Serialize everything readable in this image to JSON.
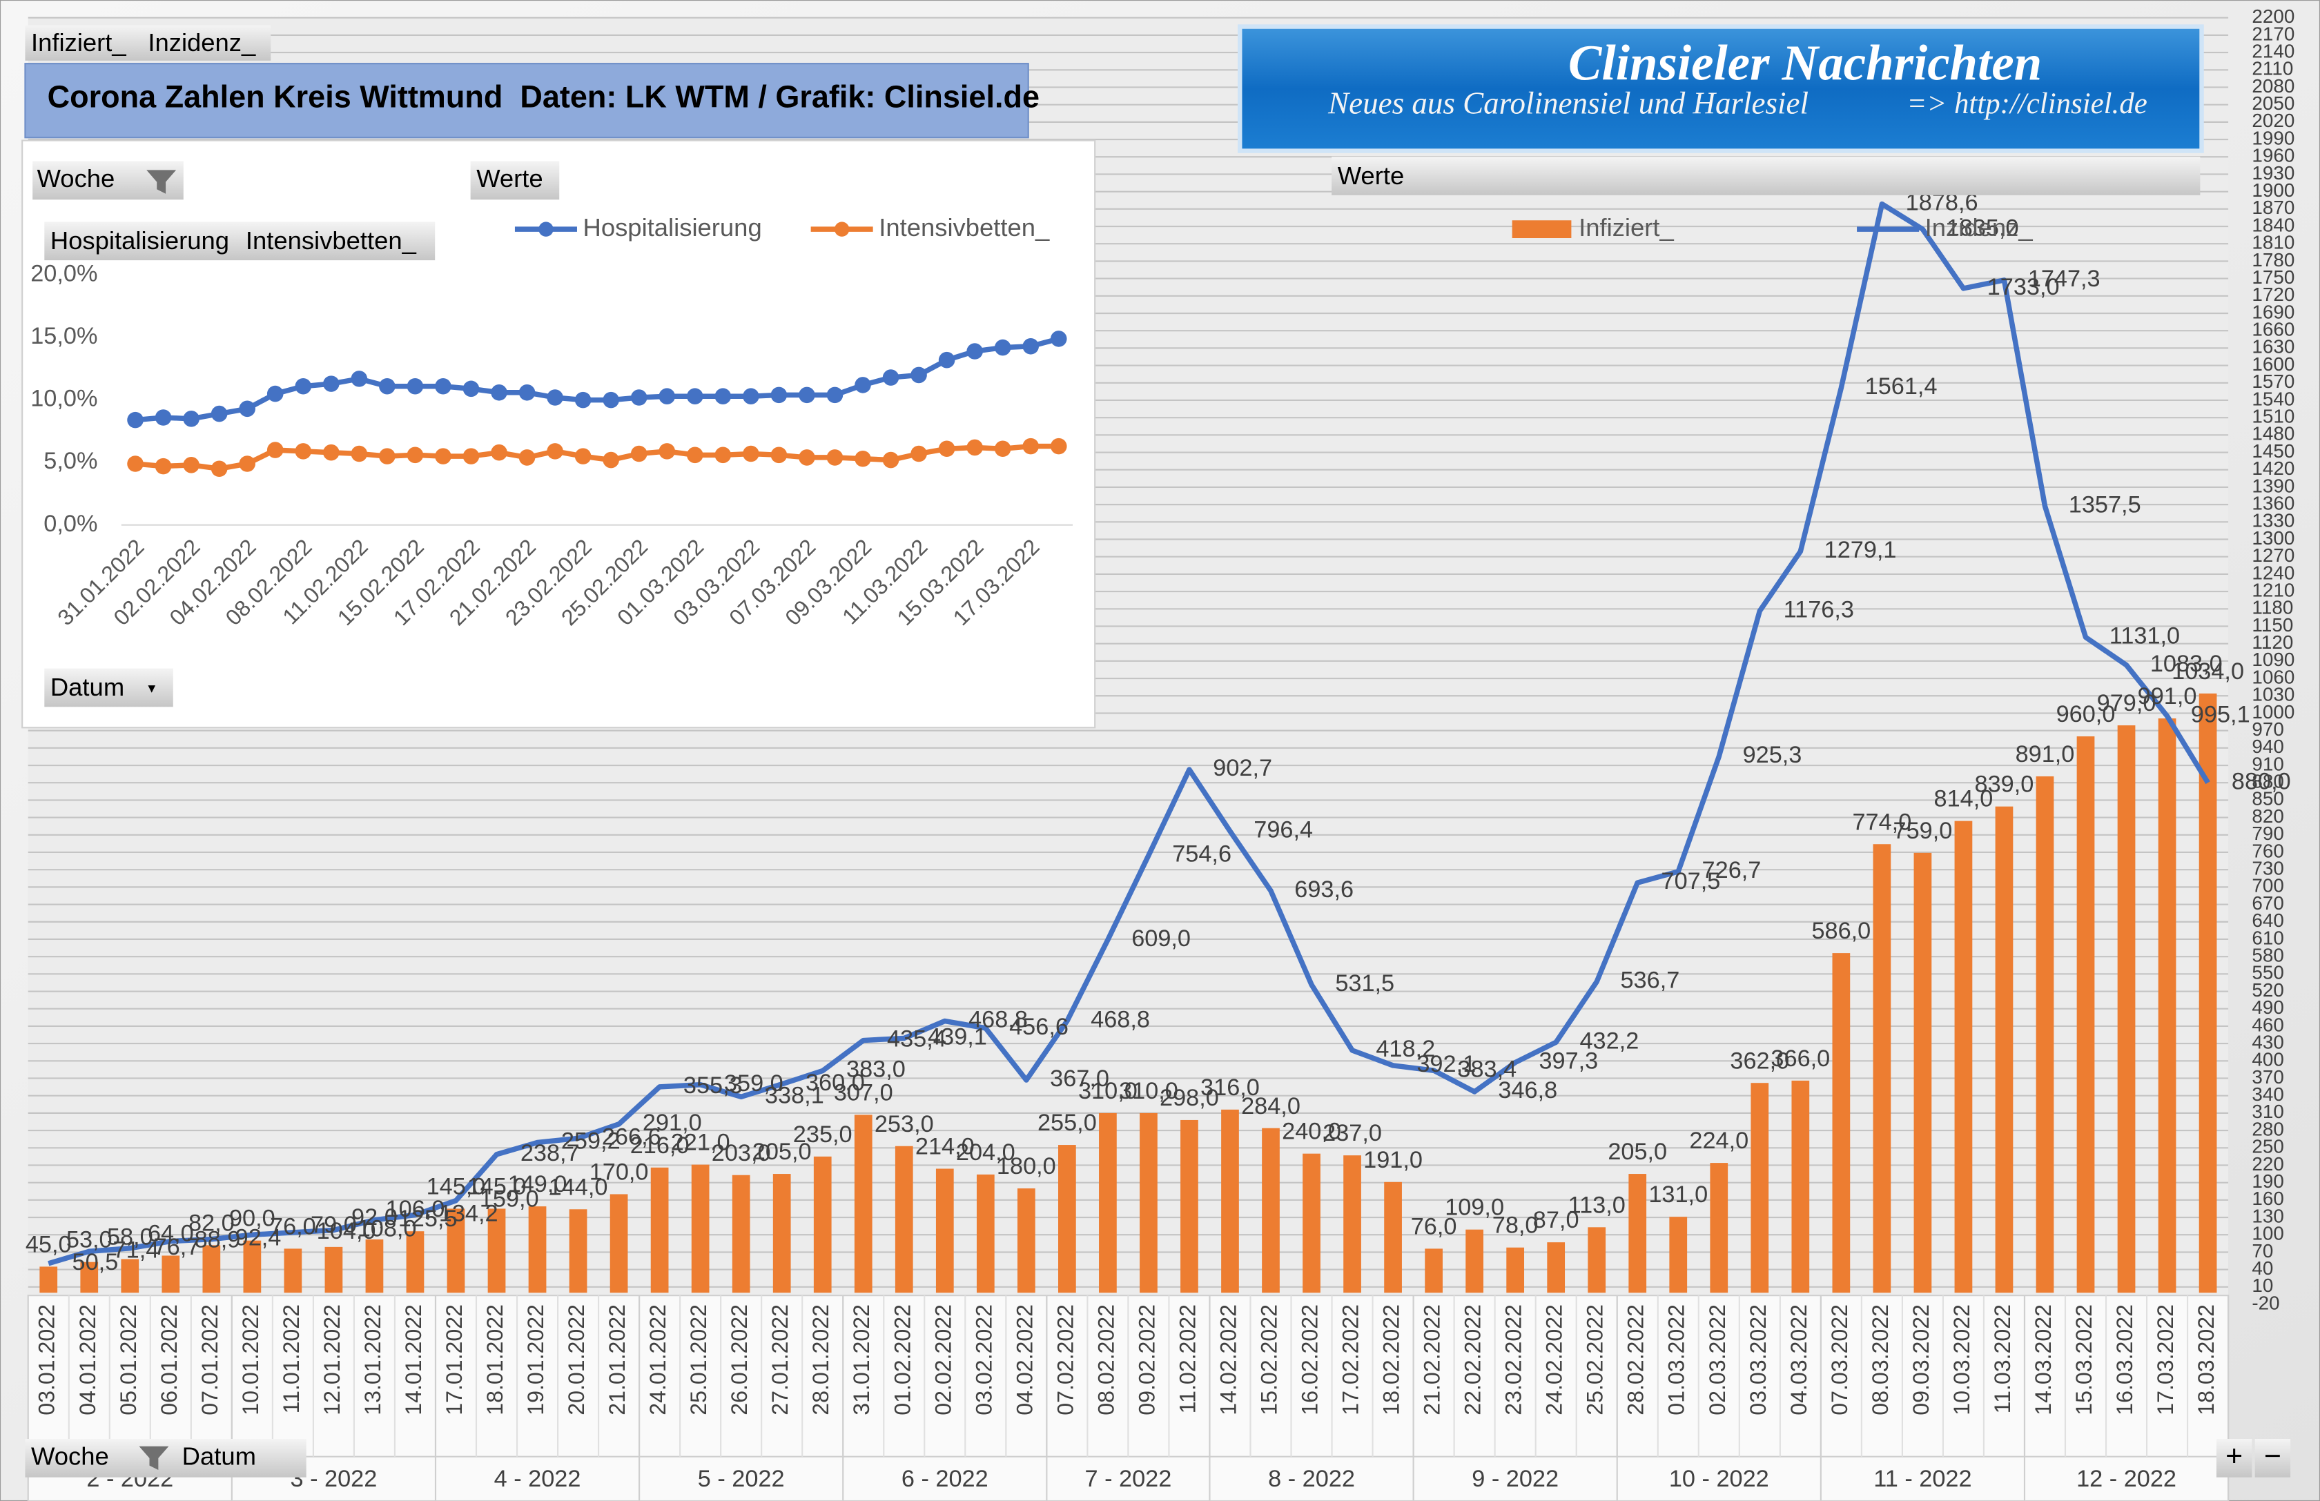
{
  "header": {
    "fields": [
      "Infiziert_",
      "Inzidenz_"
    ],
    "title": "Corona Zahlen Kreis Wittmund  Daten: LK WTM / Grafik: Clinsiel.de"
  },
  "banner": {
    "title": "Clinsieler Nachrichten",
    "subtitle": "Neues aus Carolinensiel und Harlesiel",
    "link": "=> http://clinsiel.de"
  },
  "inset_fields": {
    "filter": "Woche",
    "values": "Werte",
    "series_fields": [
      "Hospitalisierung",
      "Intensivbetten_"
    ],
    "axis_field": "Datum"
  },
  "main_fields": {
    "values": "Werte",
    "axis_fields": [
      "Woche",
      "Datum"
    ]
  },
  "zoom": [
    "+",
    "−"
  ],
  "chart_data": [
    {
      "type": "combo",
      "groups": [
        {
          "name": "2 - 2022",
          "categories": [
            "03.01.2022",
            "04.01.2022",
            "05.01.2022",
            "06.01.2022",
            "07.01.2022"
          ]
        },
        {
          "name": "3 - 2022",
          "categories": [
            "10.01.2022",
            "11.01.2022",
            "12.01.2022",
            "13.01.2022",
            "14.01.2022"
          ]
        },
        {
          "name": "4 - 2022",
          "categories": [
            "17.01.2022",
            "18.01.2022",
            "19.01.2022",
            "20.01.2022",
            "21.01.2022"
          ]
        },
        {
          "name": "5 - 2022",
          "categories": [
            "24.01.2022",
            "25.01.2022",
            "26.01.2022",
            "27.01.2022",
            "28.01.2022"
          ]
        },
        {
          "name": "6 - 2022",
          "categories": [
            "31.01.2022",
            "01.02.2022",
            "02.02.2022",
            "03.02.2022",
            "04.02.2022"
          ]
        },
        {
          "name": "7 - 2022",
          "categories": [
            "07.02.2022",
            "08.02.2022",
            "09.02.2022",
            "11.02.2022"
          ]
        },
        {
          "name": "8 - 2022",
          "categories": [
            "14.02.2022",
            "15.02.2022",
            "16.02.2022",
            "17.02.2022",
            "18.02.2022"
          ]
        },
        {
          "name": "9 - 2022",
          "categories": [
            "21.02.2022",
            "22.02.2022",
            "23.02.2022",
            "24.02.2022",
            "25.02.2022"
          ]
        },
        {
          "name": "10 - 2022",
          "categories": [
            "28.02.2022",
            "01.03.2022",
            "02.03.2022",
            "03.03.2022",
            "04.03.2022"
          ]
        },
        {
          "name": "11 - 2022",
          "categories": [
            "07.03.2022",
            "08.03.2022",
            "09.03.2022",
            "10.03.2022",
            "11.03.2022"
          ]
        },
        {
          "name": "12 - 2022",
          "categories": [
            "14.03.2022",
            "15.03.2022",
            "16.03.2022",
            "17.03.2022",
            "18.03.2022"
          ]
        }
      ],
      "series": [
        {
          "name": "Infiziert_",
          "type": "bar",
          "color": "#ed7d31",
          "values": [
            45,
            53,
            58,
            64,
            82,
            90,
            76,
            79,
            92,
            106,
            145,
            145,
            149,
            144,
            170,
            216,
            221,
            203,
            205,
            235,
            307,
            253,
            214,
            204,
            180,
            255,
            310,
            310,
            298,
            316,
            284,
            240,
            237,
            191,
            76,
            109,
            78,
            87,
            113,
            205,
            131,
            224,
            362,
            366,
            586,
            774,
            759,
            814,
            839,
            891,
            960,
            979,
            991,
            1034
          ],
          "value_labels": [
            "45,0",
            "53,0",
            "58,0",
            "64,0",
            "82,0",
            "90,0",
            "76,0",
            "79,0",
            "92,0",
            "106,0",
            "145,0",
            "145,0",
            "149,0",
            "144,0",
            "170,0",
            "216,0",
            "221,0",
            "203,0",
            "205,0",
            "235,0",
            "307,0",
            "253,0",
            "214,0",
            "204,0",
            "180,0",
            "255,0",
            "310,0",
            "310,0",
            "298,0",
            "316,0",
            "284,0",
            "240,0",
            "237,0",
            "191,0",
            "76,0",
            "109,0",
            "78,0",
            "87,0",
            "113,0",
            "205,0",
            "131,0",
            "224,0",
            "362,0",
            "366,0",
            "586,0",
            "774,0",
            "759,0",
            "814,0",
            "839,0",
            "891,0",
            "960,0",
            "979,0",
            "991,0",
            "1034,0"
          ]
        },
        {
          "name": "Inzidenz_",
          "type": "line",
          "color": "#4472c4",
          "values": [
            50.5,
            71.4,
            76.7,
            88.9,
            92.4,
            100,
            104.0,
            108.0,
            125.5,
            134.2,
            159.0,
            238.7,
            259.2,
            266.6,
            291.0,
            355.3,
            359.0,
            338.1,
            360.0,
            383.0,
            435.4,
            439.1,
            468.8,
            456.6,
            367.0,
            468.8,
            609.0,
            754.6,
            902.7,
            796.4,
            693.6,
            531.5,
            418.2,
            392.1,
            383.4,
            346.8,
            397.3,
            432.2,
            536.7,
            707.5,
            726.7,
            925.3,
            1176.3,
            1279.1,
            1561.4,
            1878.6,
            1835.0,
            1733.0,
            1747.3,
            1357.5,
            1131.0,
            1083.0,
            995.1,
            880.0
          ],
          "value_labels": [
            "50,5",
            "71,4",
            "76,7",
            "88,9",
            "92,4",
            null,
            "104,0",
            "108,0",
            "125,5",
            "134,2",
            "159,0",
            "238,7",
            "259,2",
            "266,6",
            "291,0",
            "355,3",
            "359,0",
            "338,1",
            "360,0",
            "383,0",
            "435,4",
            "439,1",
            "468,8",
            "456,6",
            "367,0",
            "468,8",
            "609,0",
            "754,6",
            "902,7",
            "796,4",
            "693,6",
            "531,5",
            "418,2",
            "392,1",
            "383,4",
            "346,8",
            "397,3",
            "432,2",
            "536,7",
            "707,5",
            "726,7",
            "925,3",
            "1176,3",
            "1279,1",
            "1561,4",
            "1878,6",
            "1835,0",
            "1733,0",
            "1747,3",
            "1357,5",
            "1131,0",
            "1083,0",
            "995,1",
            "880,0"
          ]
        }
      ],
      "ylim": [
        -20,
        2200
      ],
      "yticks": [
        -20,
        10,
        40,
        70,
        100,
        130,
        160,
        190,
        220,
        250,
        280,
        310,
        340,
        370,
        400,
        430,
        460,
        490,
        520,
        550,
        580,
        610,
        640,
        670,
        700,
        730,
        760,
        790,
        820,
        850,
        880,
        910,
        940,
        970,
        1000,
        1030,
        1060,
        1090,
        1120,
        1150,
        1180,
        1210,
        1240,
        1270,
        1300,
        1330,
        1360,
        1390,
        1420,
        1450,
        1480,
        1510,
        1540,
        1570,
        1600,
        1630,
        1660,
        1690,
        1720,
        1750,
        1780,
        1810,
        1840,
        1870,
        1900,
        1930,
        1960,
        1990,
        2020,
        2050,
        2080,
        2110,
        2140,
        2170,
        2200
      ],
      "grid": true
    },
    {
      "type": "line",
      "categories": [
        "31.01.2022",
        null,
        "02.02.2022",
        null,
        "04.02.2022",
        null,
        "08.02.2022",
        null,
        "11.02.2022",
        null,
        "15.02.2022",
        null,
        "17.02.2022",
        null,
        "21.02.2022",
        null,
        "23.02.2022",
        null,
        "25.02.2022",
        null,
        "01.03.2022",
        null,
        "03.03.2022",
        null,
        "07.03.2022",
        null,
        "09.03.2022",
        null,
        "11.03.2022",
        null,
        "15.03.2022",
        null,
        "17.03.2022",
        null
      ],
      "series": [
        {
          "name": "Hospitalisierung",
          "color": "#4472c4",
          "marker": true,
          "values": [
            8.4,
            8.6,
            8.5,
            8.9,
            9.3,
            10.5,
            11.1,
            11.3,
            11.7,
            11.1,
            11.1,
            11.1,
            10.9,
            10.6,
            10.6,
            10.2,
            10.0,
            10.0,
            10.2,
            10.3,
            10.3,
            10.3,
            10.3,
            10.4,
            10.4,
            10.4,
            11.2,
            11.8,
            12.0,
            13.2,
            13.9,
            14.2,
            14.3,
            14.9
          ]
        },
        {
          "name": "Intensivbetten_",
          "color": "#ed7d31",
          "marker": true,
          "values": [
            4.9,
            4.7,
            4.8,
            4.5,
            4.9,
            6.0,
            5.9,
            5.8,
            5.7,
            5.5,
            5.6,
            5.5,
            5.5,
            5.8,
            5.4,
            5.9,
            5.5,
            5.2,
            5.7,
            5.9,
            5.6,
            5.6,
            5.7,
            5.6,
            5.4,
            5.4,
            5.3,
            5.2,
            5.7,
            6.1,
            6.2,
            6.1,
            6.3,
            6.3
          ]
        }
      ],
      "ylim": [
        0,
        20
      ],
      "yticks": [
        {
          "value": 0,
          "label": "0,0%"
        },
        {
          "value": 5,
          "label": "5,0%"
        },
        {
          "value": 10,
          "label": "10,0%"
        },
        {
          "value": 15,
          "label": "15,0%"
        },
        {
          "value": 20,
          "label": "20,0%"
        }
      ],
      "grid": false
    }
  ]
}
